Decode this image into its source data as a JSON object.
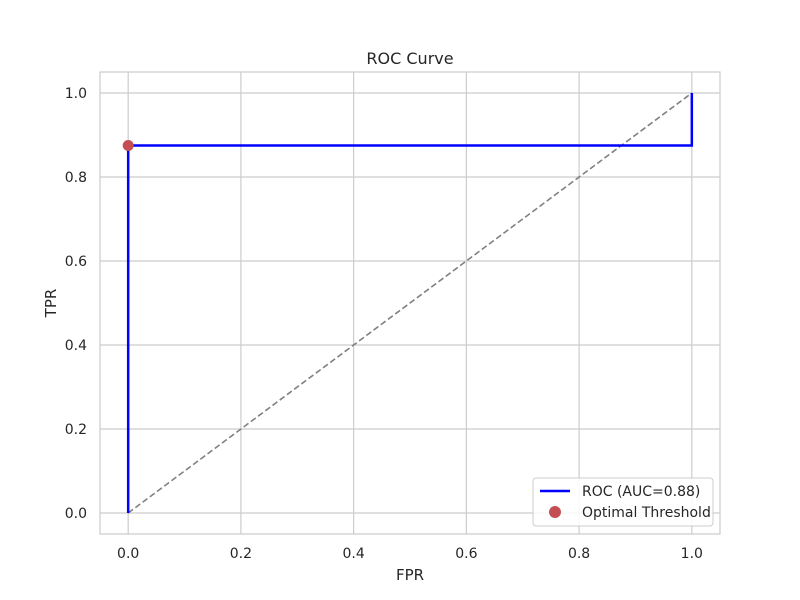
{
  "chart_data": {
    "type": "line",
    "title": "ROC Curve",
    "xlabel": "FPR",
    "ylabel": "TPR",
    "xlim": [
      -0.05,
      1.05
    ],
    "ylim": [
      -0.05,
      1.05
    ],
    "grid": true,
    "xticks": [
      "0.0",
      "0.2",
      "0.4",
      "0.6",
      "0.8",
      "1.0"
    ],
    "yticks": [
      "0.0",
      "0.2",
      "0.4",
      "0.6",
      "0.8",
      "1.0"
    ],
    "legend_position": "lower-right",
    "series": [
      {
        "name": "ROC (AUC=0.88)",
        "style": "solid",
        "color": "#0000ff",
        "x": [
          0.0,
          0.0,
          1.0,
          1.0
        ],
        "y": [
          0.0,
          0.875,
          0.875,
          1.0
        ]
      },
      {
        "name": "",
        "style": "dashed",
        "color": "#808080",
        "x": [
          0.0,
          1.0
        ],
        "y": [
          0.0,
          1.0
        ]
      }
    ],
    "markers": [
      {
        "name": "Optimal Threshold",
        "x": 0.0,
        "y": 0.875,
        "color": "#c44e52"
      }
    ]
  }
}
